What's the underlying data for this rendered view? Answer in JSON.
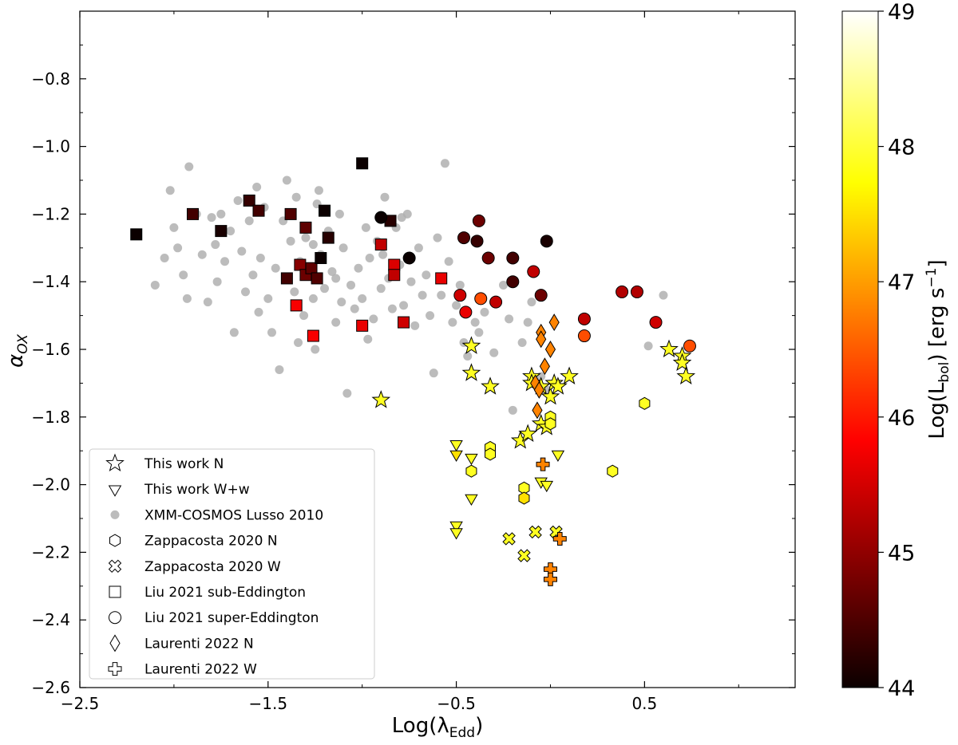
{
  "chart_data": {
    "type": "scatter",
    "title": "",
    "xlabel": "Log(λ",
    "xlabel_sub": "Edd",
    "xlabel_tail": ")",
    "ylabel": "α",
    "ylabel_sub": "OX",
    "xlim": [
      -2.5,
      1.3
    ],
    "ylim": [
      -2.6,
      -0.6
    ],
    "xticks": [
      -2.5,
      -1.5,
      -0.5,
      0.5
    ],
    "xtick_labels": [
      "−2.5",
      "−1.5",
      "−0.5",
      "0.5"
    ],
    "yticks": [
      -2.6,
      -2.4,
      -2.2,
      -2.0,
      -1.8,
      -1.6,
      -1.4,
      -1.2,
      -1.0,
      -0.8
    ],
    "ytick_labels": [
      "−2.6",
      "−2.4",
      "−2.2",
      "−2.0",
      "−1.8",
      "−1.6",
      "−1.4",
      "−1.2",
      "−1.0",
      "−0.8"
    ],
    "grid": false,
    "legend_position": "bottom-left",
    "colorbar": {
      "label": "Log(L",
      "label_sub": "bol",
      "label_tail": ") [erg s",
      "label_sup": "−1",
      "label_end": "]",
      "range": [
        44,
        49
      ],
      "ticks": [
        44,
        45,
        46,
        47,
        48,
        49
      ],
      "tick_labels": [
        "44",
        "45",
        "46",
        "47",
        "48",
        "49"
      ],
      "colormap": "hot"
    },
    "series": [
      {
        "name": "This work N",
        "marker": "star",
        "points": [
          [
            -0.9,
            -1.75
          ],
          [
            -0.42,
            -1.59
          ],
          [
            -0.42,
            -1.67
          ],
          [
            -0.32,
            -1.71
          ],
          [
            -0.16,
            -1.87
          ],
          [
            -0.12,
            -1.85
          ],
          [
            -0.1,
            -1.68
          ],
          [
            -0.1,
            -1.7
          ],
          [
            -0.05,
            -1.71
          ],
          [
            -0.05,
            -1.82
          ],
          [
            0.0,
            -1.74
          ],
          [
            0.02,
            -1.7
          ],
          [
            -0.02,
            -1.83
          ],
          [
            0.04,
            -1.71
          ],
          [
            0.1,
            -1.68
          ],
          [
            0.63,
            -1.6
          ],
          [
            0.7,
            -1.62
          ],
          [
            0.7,
            -1.64
          ],
          [
            0.72,
            -1.68
          ]
        ],
        "lbol": [
          47.9,
          47.9,
          47.9,
          47.9,
          47.9,
          47.9,
          47.9,
          47.9,
          47.9,
          47.9,
          47.9,
          47.9,
          47.9,
          47.9,
          47.9,
          47.9,
          47.9,
          47.9,
          47.9
        ]
      },
      {
        "name": "This work W+w",
        "marker": "triangle-down",
        "points": [
          [
            -0.5,
            -1.88
          ],
          [
            -0.5,
            -1.91
          ],
          [
            -0.5,
            -2.12
          ],
          [
            -0.5,
            -2.14
          ],
          [
            -0.42,
            -1.92
          ],
          [
            -0.42,
            -2.04
          ],
          [
            -0.05,
            -1.99
          ],
          [
            -0.02,
            -2.0
          ],
          [
            0.04,
            -1.91
          ]
        ],
        "lbol": [
          47.9,
          47.5,
          47.9,
          47.9,
          47.9,
          47.9,
          47.9,
          47.9,
          47.9
        ]
      },
      {
        "name": "XMM-COSMOS Lusso 2010",
        "marker": "circle-gray",
        "points": [
          [
            -2.1,
            -1.41
          ],
          [
            -2.05,
            -1.33
          ],
          [
            -2.02,
            -1.13
          ],
          [
            -2.0,
            -1.24
          ],
          [
            -1.98,
            -1.3
          ],
          [
            -1.95,
            -1.38
          ],
          [
            -1.93,
            -1.45
          ],
          [
            -1.92,
            -1.06
          ],
          [
            -1.88,
            -1.2
          ],
          [
            -1.85,
            -1.32
          ],
          [
            -1.82,
            -1.46
          ],
          [
            -1.8,
            -1.21
          ],
          [
            -1.78,
            -1.29
          ],
          [
            -1.77,
            -1.4
          ],
          [
            -1.75,
            -1.2
          ],
          [
            -1.73,
            -1.34
          ],
          [
            -1.7,
            -1.25
          ],
          [
            -1.68,
            -1.55
          ],
          [
            -1.66,
            -1.16
          ],
          [
            -1.64,
            -1.31
          ],
          [
            -1.62,
            -1.43
          ],
          [
            -1.6,
            -1.22
          ],
          [
            -1.58,
            -1.38
          ],
          [
            -1.56,
            -1.12
          ],
          [
            -1.54,
            -1.33
          ],
          [
            -1.52,
            -1.18
          ],
          [
            -1.5,
            -1.45
          ],
          [
            -1.48,
            -1.55
          ],
          [
            -1.46,
            -1.36
          ],
          [
            -1.44,
            -1.66
          ],
          [
            -1.42,
            -1.22
          ],
          [
            -1.4,
            -1.1
          ],
          [
            -1.38,
            -1.28
          ],
          [
            -1.36,
            -1.43
          ],
          [
            -1.35,
            -1.15
          ],
          [
            -1.33,
            -1.34
          ],
          [
            -1.31,
            -1.5
          ],
          [
            -1.3,
            -1.27
          ],
          [
            -1.28,
            -1.37
          ],
          [
            -1.26,
            -1.45
          ],
          [
            -1.25,
            -1.6
          ],
          [
            -1.23,
            -1.13
          ],
          [
            -1.22,
            -1.32
          ],
          [
            -1.2,
            -1.42
          ],
          [
            -1.18,
            -1.25
          ],
          [
            -1.16,
            -1.37
          ],
          [
            -1.14,
            -1.52
          ],
          [
            -1.12,
            -1.2
          ],
          [
            -1.1,
            -1.3
          ],
          [
            -1.08,
            -1.73
          ],
          [
            -1.06,
            -1.41
          ],
          [
            -1.04,
            -1.48
          ],
          [
            -1.02,
            -1.36
          ],
          [
            -1.0,
            -1.45
          ],
          [
            -0.98,
            -1.24
          ],
          [
            -0.96,
            -1.33
          ],
          [
            -0.94,
            -1.51
          ],
          [
            -0.92,
            -1.28
          ],
          [
            -0.9,
            -1.42
          ],
          [
            -0.88,
            -1.15
          ],
          [
            -0.86,
            -1.39
          ],
          [
            -0.84,
            -1.48
          ],
          [
            -0.82,
            -1.24
          ],
          [
            -0.8,
            -1.35
          ],
          [
            -0.78,
            -1.47
          ],
          [
            -0.76,
            -1.2
          ],
          [
            -0.74,
            -1.4
          ],
          [
            -0.72,
            -1.53
          ],
          [
            -0.7,
            -1.3
          ],
          [
            -0.68,
            -1.44
          ],
          [
            -0.66,
            -1.38
          ],
          [
            -0.64,
            -1.5
          ],
          [
            -0.62,
            -1.67
          ],
          [
            -0.6,
            -1.27
          ],
          [
            -0.58,
            -1.44
          ],
          [
            -0.56,
            -1.05
          ],
          [
            -0.54,
            -1.34
          ],
          [
            -0.52,
            -1.52
          ],
          [
            -0.5,
            -1.47
          ],
          [
            -0.48,
            -1.41
          ],
          [
            -0.46,
            -1.58
          ],
          [
            -0.44,
            -1.62
          ],
          [
            -0.4,
            -1.52
          ],
          [
            -0.38,
            -1.55
          ],
          [
            -0.35,
            -1.49
          ],
          [
            -0.3,
            -1.61
          ],
          [
            -0.28,
            -1.46
          ],
          [
            -0.25,
            -1.41
          ],
          [
            -0.22,
            -1.51
          ],
          [
            -0.2,
            -1.78
          ],
          [
            -0.15,
            -1.58
          ],
          [
            -0.12,
            -1.52
          ],
          [
            -0.1,
            -1.46
          ],
          [
            -0.05,
            -1.68
          ],
          [
            -0.02,
            -1.72
          ],
          [
            0.52,
            -1.59
          ],
          [
            0.6,
            -1.44
          ],
          [
            -1.26,
            -1.29
          ],
          [
            -1.14,
            -1.39
          ],
          [
            -0.97,
            -1.57
          ],
          [
            -0.89,
            -1.32
          ],
          [
            -0.79,
            -1.21
          ],
          [
            -1.55,
            -1.49
          ],
          [
            -1.34,
            -1.58
          ],
          [
            -1.24,
            -1.17
          ],
          [
            -1.11,
            -1.46
          ]
        ]
      },
      {
        "name": "Zappacosta 2020 N",
        "marker": "hexagon",
        "points": [
          [
            -0.42,
            -1.96
          ],
          [
            -0.32,
            -1.89
          ],
          [
            -0.32,
            -1.91
          ],
          [
            -0.14,
            -2.01
          ],
          [
            -0.14,
            -2.04
          ],
          [
            0.0,
            -1.8
          ],
          [
            0.0,
            -1.82
          ],
          [
            0.33,
            -1.96
          ],
          [
            0.5,
            -1.76
          ]
        ],
        "lbol": [
          47.9,
          47.9,
          47.9,
          47.9,
          47.5,
          47.9,
          47.9,
          47.9,
          47.9
        ]
      },
      {
        "name": "Zappacosta 2020 W",
        "marker": "x-thick",
        "points": [
          [
            -0.22,
            -2.16
          ],
          [
            -0.14,
            -2.21
          ],
          [
            -0.08,
            -2.14
          ],
          [
            0.03,
            -2.14
          ]
        ],
        "lbol": [
          47.9,
          47.9,
          47.9,
          47.9
        ]
      },
      {
        "name": "Liu 2021 sub-Eddington",
        "marker": "square",
        "points": [
          [
            -2.2,
            -1.26
          ],
          [
            -1.9,
            -1.2
          ],
          [
            -1.75,
            -1.25
          ],
          [
            -1.6,
            -1.16
          ],
          [
            -1.55,
            -1.19
          ],
          [
            -1.4,
            -1.39
          ],
          [
            -1.38,
            -1.2
          ],
          [
            -1.35,
            -1.47
          ],
          [
            -1.33,
            -1.35
          ],
          [
            -1.3,
            -1.24
          ],
          [
            -1.3,
            -1.38
          ],
          [
            -1.27,
            -1.36
          ],
          [
            -1.26,
            -1.56
          ],
          [
            -1.24,
            -1.39
          ],
          [
            -1.22,
            -1.33
          ],
          [
            -1.2,
            -1.19
          ],
          [
            -1.18,
            -1.27
          ],
          [
            -1.0,
            -1.05
          ],
          [
            -1.0,
            -1.53
          ],
          [
            -0.9,
            -1.29
          ],
          [
            -0.85,
            -1.22
          ],
          [
            -0.83,
            -1.35
          ],
          [
            -0.83,
            -1.38
          ],
          [
            -0.78,
            -1.52
          ],
          [
            -0.58,
            -1.39
          ]
        ],
        "lbol": [
          44.0,
          44.4,
          44.1,
          44.3,
          44.4,
          44.4,
          44.5,
          45.7,
          44.9,
          44.6,
          44.7,
          44.6,
          45.7,
          44.5,
          44.0,
          44.0,
          44.2,
          44.0,
          45.6,
          45.3,
          44.2,
          45.5,
          45.3,
          45.4,
          45.6
        ]
      },
      {
        "name": "Liu 2021 super-Eddington",
        "marker": "circle",
        "points": [
          [
            -0.75,
            -1.33
          ],
          [
            -0.9,
            -1.21
          ],
          [
            -0.48,
            -1.44
          ],
          [
            -0.46,
            -1.27
          ],
          [
            -0.45,
            -1.49
          ],
          [
            -0.39,
            -1.28
          ],
          [
            -0.38,
            -1.22
          ],
          [
            -0.37,
            -1.45
          ],
          [
            -0.33,
            -1.33
          ],
          [
            -0.29,
            -1.46
          ],
          [
            -0.2,
            -1.33
          ],
          [
            -0.2,
            -1.4
          ],
          [
            -0.09,
            -1.37
          ],
          [
            -0.05,
            -1.44
          ],
          [
            -0.02,
            -1.28
          ],
          [
            0.18,
            -1.51
          ],
          [
            0.18,
            -1.56
          ],
          [
            0.38,
            -1.43
          ],
          [
            0.46,
            -1.43
          ],
          [
            0.56,
            -1.52
          ],
          [
            0.74,
            -1.59
          ]
        ],
        "lbol": [
          44.0,
          44.0,
          45.4,
          44.5,
          45.6,
          44.3,
          44.7,
          46.4,
          44.7,
          45.3,
          44.4,
          44.4,
          45.3,
          44.7,
          44.1,
          45.3,
          46.4,
          45.2,
          45.2,
          45.4,
          46.4
        ]
      },
      {
        "name": "Laurenti 2022 N",
        "marker": "diamond",
        "points": [
          [
            -0.05,
            -1.55
          ],
          [
            -0.05,
            -1.57
          ],
          [
            0.0,
            -1.6
          ],
          [
            -0.03,
            -1.65
          ],
          [
            -0.08,
            -1.7
          ],
          [
            -0.06,
            -1.72
          ],
          [
            -0.07,
            -1.78
          ],
          [
            0.02,
            -1.52
          ]
        ],
        "lbol": [
          46.8,
          46.8,
          46.8,
          46.8,
          46.8,
          46.8,
          46.8,
          46.8
        ]
      },
      {
        "name": "Laurenti 2022 W",
        "marker": "plus-thick",
        "points": [
          [
            -0.04,
            -1.94
          ],
          [
            0.05,
            -2.16
          ],
          [
            0.0,
            -2.25
          ],
          [
            0.0,
            -2.28
          ]
        ],
        "lbol": [
          46.8,
          46.8,
          46.8,
          46.8
        ]
      }
    ]
  }
}
